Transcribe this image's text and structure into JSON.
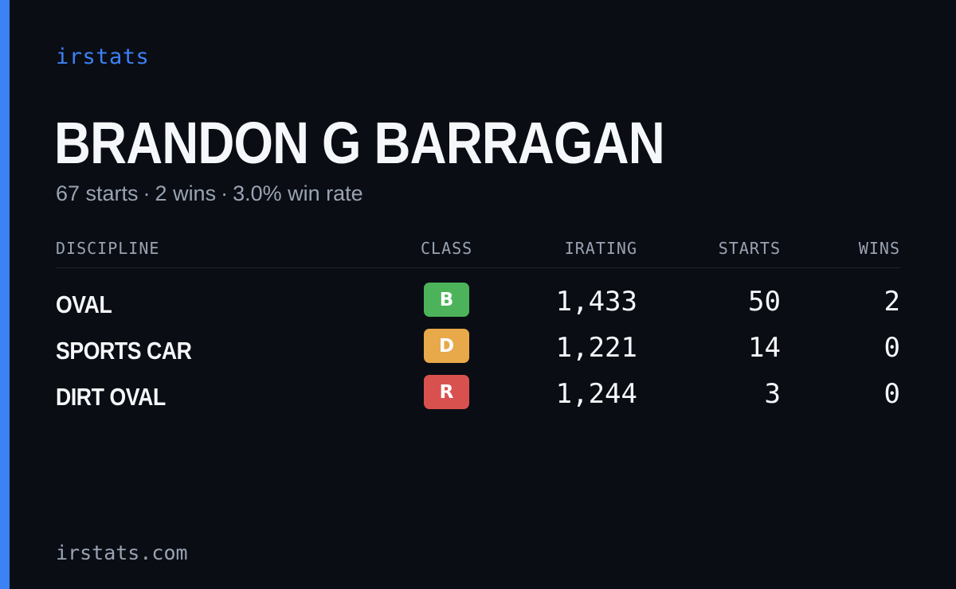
{
  "brand": "irstats",
  "driver": {
    "name": "BRANDON G BARRAGAN",
    "starts_text": "67 starts",
    "wins_text": "2 wins",
    "win_rate_text": "3.0% win rate",
    "separator": "·"
  },
  "table": {
    "headers": {
      "discipline": "DISCIPLINE",
      "class": "CLASS",
      "irating": "IRATING",
      "starts": "STARTS",
      "wins": "WINS"
    },
    "rows": [
      {
        "discipline": "OVAL",
        "class": "B",
        "class_color": "#4cb35a",
        "irating": "1,433",
        "starts": "50",
        "wins": "2"
      },
      {
        "discipline": "SPORTS CAR",
        "class": "D",
        "class_color": "#e8a94a",
        "irating": "1,221",
        "starts": "14",
        "wins": "0"
      },
      {
        "discipline": "DIRT OVAL",
        "class": "R",
        "class_color": "#d9514e",
        "irating": "1,244",
        "starts": "3",
        "wins": "0"
      }
    ]
  },
  "footer": "irstats.com",
  "colors": {
    "background": "#0a0d14",
    "accent": "#3b82f6",
    "text": "#f5f7fa",
    "muted": "#9aa3b2"
  }
}
